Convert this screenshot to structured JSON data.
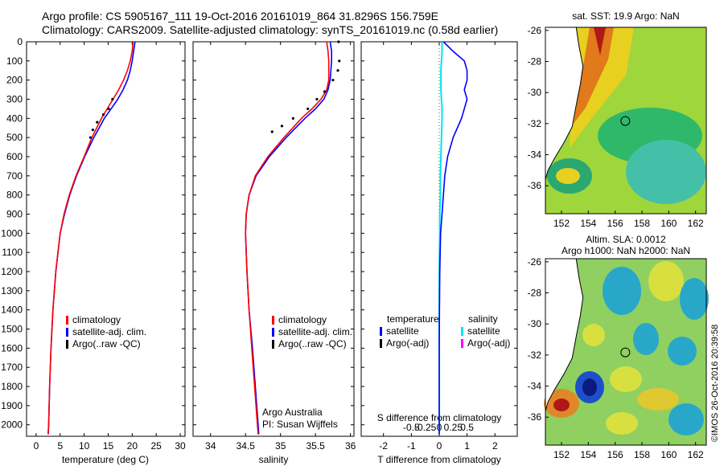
{
  "header": {
    "line1": "Argo profile: CS 5905167_111 19-Oct-2016 20161019_864 31.8296S 156.759E",
    "line2": "Climatology: CARS2009. Satellite-adjusted climatology: synTS_20161019.nc (0.58d earlier)"
  },
  "panels": {
    "temperature": {
      "xlabel": "temperature (deg C)",
      "xticks": [
        0,
        5,
        10,
        15,
        20,
        25,
        30
      ],
      "xlim": [
        -2,
        31
      ],
      "legend": [
        "climatology",
        "satellite-adj. clim.",
        "Argo(..raw -QC)"
      ]
    },
    "salinity": {
      "xlabel": "salinity",
      "xticks": [
        34,
        34.5,
        35,
        35.5,
        36
      ],
      "xlim": [
        33.75,
        36.05
      ],
      "legend": [
        "climatology",
        "satellite-adj. clim.",
        "Argo(..raw -QC)"
      ],
      "credit1": "Argo Australia",
      "credit2": "PI: Susan Wijffels"
    },
    "difference": {
      "xlabel_bottom": "T difference from climatology",
      "xlabel_top": "S difference from climatology",
      "t_ticks": [
        -2,
        -1,
        0,
        1,
        2
      ],
      "s_ticks": [
        "-0.5",
        "-0.25",
        "0",
        "0.25",
        "0.5"
      ],
      "xlim": [
        -2.8,
        2.8
      ],
      "legend_temp_title": "temperature",
      "legend_sal_title": "salinity",
      "legend_temp": [
        "satellite",
        "Argo(-adj)"
      ],
      "legend_sal": [
        "satellite",
        "Argo(-adj)"
      ]
    },
    "depth_ticks": [
      0,
      100,
      200,
      300,
      400,
      500,
      600,
      700,
      800,
      900,
      1000,
      1100,
      1200,
      1300,
      1400,
      1500,
      1600,
      1700,
      1800,
      1900,
      2000
    ],
    "depth_lim": [
      0,
      2060
    ]
  },
  "maps": {
    "sst_title": "sat. SST: 19.9 Argo: NaN",
    "sla_title1": "Altim. SLA: 0.0012",
    "sla_title2": "Argo h1000: NaN h2000: NaN",
    "yticks": [
      -26,
      -28,
      -30,
      -32,
      -34,
      -36
    ],
    "xticks": [
      152,
      154,
      156,
      158,
      160,
      162
    ],
    "lon_lim": [
      150.8,
      162.8
    ],
    "lat_lim": [
      -37.8,
      -25.8
    ],
    "argo_point": [
      156.759,
      -31.83
    ]
  },
  "stamp": "©IMOS 26-Oct-2016 20:39:58",
  "colors": {
    "climatology": "#ff0000",
    "satellite": "#0000ff",
    "argo": "#000000",
    "sal_satellite": "#00e5ee",
    "sal_argo": "#ff00ff"
  },
  "chart_data": {
    "type": "line",
    "depth": [
      0,
      50,
      100,
      150,
      200,
      250,
      300,
      350,
      400,
      500,
      600,
      700,
      800,
      900,
      1000,
      1200,
      1400,
      1600,
      1800,
      2000,
      2050
    ],
    "temperature": {
      "climatology": [
        20.2,
        20.0,
        19.6,
        19.0,
        18.2,
        17.2,
        16.0,
        14.8,
        13.6,
        11.6,
        10.0,
        8.3,
        6.9,
        5.8,
        5.0,
        4.1,
        3.5,
        3.1,
        2.8,
        2.6,
        2.5
      ],
      "satellite_adj": [
        20.6,
        20.3,
        20.0,
        19.6,
        19.0,
        18.1,
        17.0,
        15.6,
        14.2,
        12.0,
        10.1,
        8.4,
        7.0,
        5.9,
        5.0,
        4.1,
        3.5,
        3.1,
        2.8,
        2.6,
        2.5
      ],
      "argo": [
        {
          "d": 300,
          "v": 15.9
        },
        {
          "d": 350,
          "v": 15.1
        },
        {
          "d": 380,
          "v": 14.0
        },
        {
          "d": 420,
          "v": 12.7
        },
        {
          "d": 460,
          "v": 11.8
        },
        {
          "d": 500,
          "v": 11.3
        }
      ]
    },
    "salinity": {
      "climatology": [
        35.66,
        35.68,
        35.69,
        35.69,
        35.69,
        35.66,
        35.58,
        35.45,
        35.3,
        35.05,
        34.82,
        34.64,
        34.55,
        34.51,
        34.5,
        34.52,
        34.55,
        34.59,
        34.63,
        34.67,
        34.68
      ],
      "satellite_adj": [
        35.71,
        35.73,
        35.73,
        35.72,
        35.71,
        35.68,
        35.62,
        35.5,
        35.35,
        35.08,
        34.84,
        34.65,
        34.55,
        34.51,
        34.5,
        34.52,
        34.55,
        34.6,
        34.64,
        34.68,
        34.69
      ],
      "argo": [
        {
          "d": 0,
          "v": 35.83
        },
        {
          "d": 100,
          "v": 35.84
        },
        {
          "d": 150,
          "v": 35.82
        },
        {
          "d": 200,
          "v": 35.75
        },
        {
          "d": 260,
          "v": 35.63
        },
        {
          "d": 300,
          "v": 35.52
        },
        {
          "d": 350,
          "v": 35.39
        },
        {
          "d": 400,
          "v": 35.18
        },
        {
          "d": 440,
          "v": 35.02
        },
        {
          "d": 470,
          "v": 34.88
        }
      ]
    },
    "difference": {
      "temp_satellite": [
        0.15,
        0.5,
        0.9,
        1.0,
        1.0,
        0.9,
        1.0,
        0.9,
        0.8,
        0.5,
        0.3,
        0.2,
        0.15,
        0.1,
        0.05,
        0.02,
        0.01,
        0.0,
        0.0,
        0.0,
        0.0
      ],
      "sal_satellite": [
        0.05,
        0.05,
        0.04,
        0.03,
        0.03,
        0.03,
        0.04,
        0.05,
        0.05,
        0.04,
        0.03,
        0.02,
        0.02,
        0.01,
        0.01,
        0.0,
        0.0,
        0.0,
        0.0,
        0.0,
        0.0
      ]
    }
  }
}
